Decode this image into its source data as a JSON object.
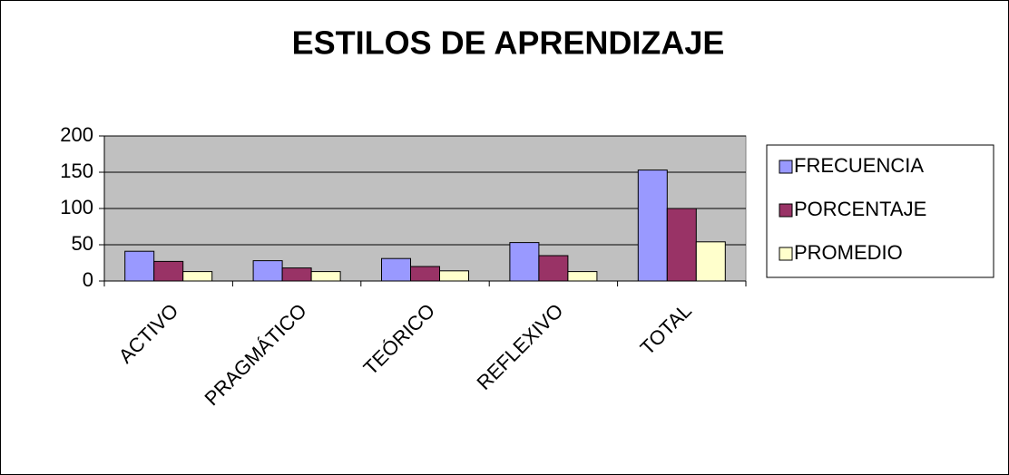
{
  "chart_data": {
    "type": "bar",
    "title": "ESTILOS DE APRENDIZAJE",
    "categories": [
      "ACTIVO",
      "PRAGMÁTICO",
      "TEÓRICO",
      "REFLEXIVO",
      "TOTAL"
    ],
    "series": [
      {
        "name": "FRECUENCIA",
        "color": "#9999ff",
        "values": [
          41,
          28,
          31,
          53,
          153
        ]
      },
      {
        "name": "PORCENTAJE",
        "color": "#993366",
        "values": [
          27,
          18,
          20,
          35,
          100
        ]
      },
      {
        "name": "PROMEDIO",
        "color": "#ffffcc",
        "values": [
          13,
          13,
          14,
          13,
          54
        ]
      }
    ],
    "ylim": [
      0,
      200
    ],
    "yticks": [
      0,
      50,
      100,
      150,
      200
    ],
    "grid": true,
    "legend": "right"
  }
}
